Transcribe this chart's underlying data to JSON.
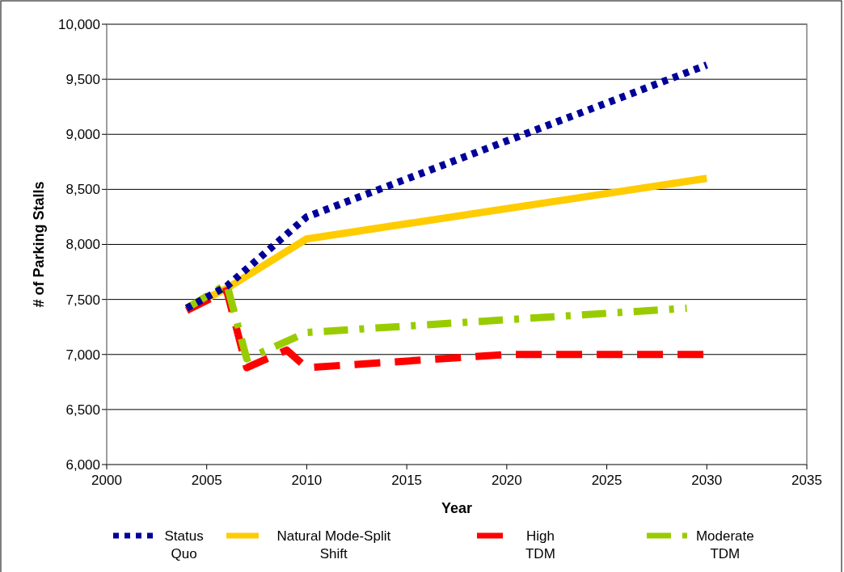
{
  "chart_data": {
    "type": "line",
    "xlabel": "Year",
    "ylabel": "# of Parking Stalls",
    "xlim": [
      2000,
      2035
    ],
    "xticks": [
      2000,
      2005,
      2010,
      2015,
      2020,
      2025,
      2030,
      2035
    ],
    "ylim": [
      6000,
      10000
    ],
    "yticks": [
      {
        "value": 6000,
        "label": "6,000"
      },
      {
        "value": 6500,
        "label": "6,500"
      },
      {
        "value": 7000,
        "label": "7,000"
      },
      {
        "value": 7500,
        "label": "7,500"
      },
      {
        "value": 8000,
        "label": "8,000"
      },
      {
        "value": 8500,
        "label": "8,500"
      },
      {
        "value": 9000,
        "label": "9,000"
      },
      {
        "value": 9500,
        "label": "9,500"
      },
      {
        "value": 10000,
        "label": "10,000"
      }
    ],
    "grid": "y",
    "legend": "bottom",
    "marker": "none",
    "series": [
      {
        "name": "Status Quo",
        "color": "#000099",
        "line_style": "dotted",
        "x": [
          2004,
          2006,
          2010,
          2030
        ],
        "values": [
          7420,
          7620,
          8250,
          9630
        ]
      },
      {
        "name": "Natural Mode-Split Shift",
        "color": "#ffcc00",
        "line_style": "solid",
        "x": [
          2004,
          2006,
          2010,
          2030
        ],
        "values": [
          7420,
          7600,
          8050,
          8600
        ]
      },
      {
        "name": "High TDM",
        "color": "#ff0000",
        "line_style": "dashed",
        "x": [
          2004,
          2006,
          2007,
          2009,
          2010,
          2020,
          2030
        ],
        "values": [
          7400,
          7580,
          6880,
          7040,
          6880,
          7000,
          7000
        ]
      },
      {
        "name": "Moderate TDM",
        "color": "#99cc00",
        "line_style": "dashdot",
        "x": [
          2004,
          2006,
          2007,
          2010,
          2029
        ],
        "values": [
          7420,
          7640,
          6960,
          7200,
          7420
        ]
      }
    ]
  }
}
